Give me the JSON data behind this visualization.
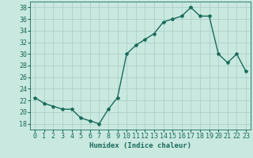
{
  "x": [
    0,
    1,
    2,
    3,
    4,
    5,
    6,
    7,
    8,
    9,
    10,
    11,
    12,
    13,
    14,
    15,
    16,
    17,
    18,
    19,
    20,
    21,
    22,
    23
  ],
  "y": [
    22.5,
    21.5,
    21.0,
    20.5,
    20.5,
    19.0,
    18.5,
    18.0,
    20.5,
    22.5,
    30.0,
    31.5,
    32.5,
    33.5,
    35.5,
    36.0,
    36.5,
    38.0,
    36.5,
    36.5,
    30.0,
    28.5,
    30.0,
    27.0
  ],
  "line_color": "#1a6b5a",
  "marker": "*",
  "marker_size": 3,
  "bg_color": "#c8e8e0",
  "grid_color": "#a8ccc4",
  "xlabel": "Humidex (Indice chaleur)",
  "xlim": [
    -0.5,
    23.5
  ],
  "ylim": [
    17,
    39
  ],
  "yticks": [
    18,
    20,
    22,
    24,
    26,
    28,
    30,
    32,
    34,
    36,
    38
  ],
  "xticks": [
    0,
    1,
    2,
    3,
    4,
    5,
    6,
    7,
    8,
    9,
    10,
    11,
    12,
    13,
    14,
    15,
    16,
    17,
    18,
    19,
    20,
    21,
    22,
    23
  ],
  "xlabel_fontsize": 6.5,
  "tick_fontsize": 6,
  "line_width": 1.0
}
